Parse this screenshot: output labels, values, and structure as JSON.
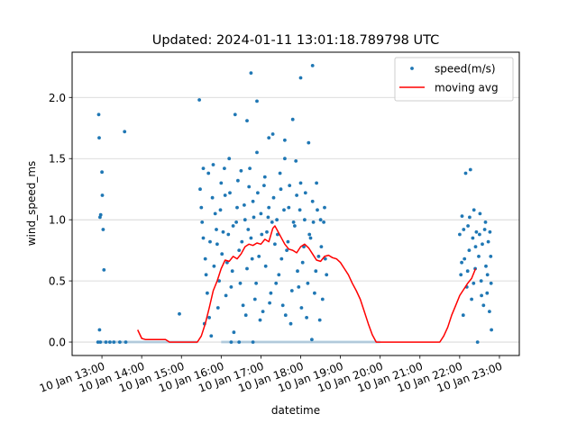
{
  "chart_data": {
    "type": "scatter",
    "title": "Updated: 2024-01-11 13:01:18.789798 UTC",
    "xlabel": "datetime",
    "ylabel": "wind_speed_ms",
    "x_unit": "hours (10 Jan 2024)",
    "xlim": [
      12.25,
      23.5
    ],
    "ylim": [
      -0.11,
      2.37
    ],
    "x_ticks": [
      13,
      14,
      15,
      16,
      17,
      18,
      19,
      20,
      21,
      22,
      23
    ],
    "x_tick_labels": [
      "10 Jan 13:00",
      "10 Jan 14:00",
      "10 Jan 15:00",
      "10 Jan 16:00",
      "10 Jan 17:00",
      "10 Jan 18:00",
      "10 Jan 19:00",
      "10 Jan 20:00",
      "10 Jan 21:00",
      "10 Jan 22:00",
      "10 Jan 23:00"
    ],
    "y_ticks": [
      0.0,
      0.5,
      1.0,
      1.5,
      2.0
    ],
    "y_tick_labels": [
      "0.0",
      "0.5",
      "1.0",
      "1.5",
      "2.0"
    ],
    "grid": "y",
    "legend": "top-right",
    "series": [
      {
        "name": "speed(m/s)",
        "kind": "scatter",
        "color": "#1f77b4",
        "points": [
          [
            12.92,
            1.86
          ],
          [
            12.93,
            1.67
          ],
          [
            12.95,
            1.02
          ],
          [
            12.97,
            1.04
          ],
          [
            13.0,
            1.39
          ],
          [
            13.01,
            1.2
          ],
          [
            13.03,
            0.92
          ],
          [
            13.05,
            0.59
          ],
          [
            12.94,
            0.1
          ],
          [
            12.9,
            0.0
          ],
          [
            12.96,
            0.0
          ],
          [
            13.1,
            0.0
          ],
          [
            13.2,
            0.0
          ],
          [
            13.3,
            0.0
          ],
          [
            13.45,
            0.0
          ],
          [
            13.6,
            0.0
          ],
          [
            13.57,
            1.72
          ],
          [
            14.95,
            0.23
          ],
          [
            15.45,
            1.98
          ],
          [
            15.47,
            1.25
          ],
          [
            15.5,
            1.1
          ],
          [
            15.52,
            0.98
          ],
          [
            15.55,
            0.85
          ],
          [
            15.6,
            0.68
          ],
          [
            15.62,
            0.55
          ],
          [
            15.65,
            0.4
          ],
          [
            15.7,
            0.2
          ],
          [
            15.75,
            0.05
          ],
          [
            15.8,
            1.45
          ],
          [
            15.85,
            1.05
          ],
          [
            15.9,
            0.8
          ],
          [
            15.95,
            0.5
          ],
          [
            16.0,
            1.3
          ],
          [
            16.05,
            0.9
          ],
          [
            16.1,
            1.2
          ],
          [
            16.15,
            0.65
          ],
          [
            16.2,
            1.5
          ],
          [
            16.25,
            0.45
          ],
          [
            16.3,
            0.95
          ],
          [
            16.35,
            1.86
          ],
          [
            16.4,
            1.1
          ],
          [
            16.45,
            0.75
          ],
          [
            16.5,
            1.4
          ],
          [
            16.55,
            0.3
          ],
          [
            16.6,
            1.0
          ],
          [
            16.65,
            0.6
          ],
          [
            16.7,
            1.27
          ],
          [
            16.75,
            0.85
          ],
          [
            16.8,
            1.15
          ],
          [
            16.85,
            0.35
          ],
          [
            16.9,
            1.55
          ],
          [
            16.95,
            0.7
          ],
          [
            17.0,
            1.05
          ],
          [
            17.05,
            0.25
          ],
          [
            17.1,
            1.35
          ],
          [
            17.15,
            0.9
          ],
          [
            17.2,
            1.1
          ],
          [
            17.25,
            0.4
          ],
          [
            17.3,
            1.7
          ],
          [
            17.35,
            0.8
          ],
          [
            17.4,
            1.0
          ],
          [
            17.45,
            0.55
          ],
          [
            17.5,
            1.25
          ],
          [
            17.55,
            0.3
          ],
          [
            17.6,
            1.5
          ],
          [
            17.65,
            0.75
          ],
          [
            17.7,
            1.1
          ],
          [
            17.75,
            0.15
          ],
          [
            17.8,
            1.82
          ],
          [
            17.85,
            0.95
          ],
          [
            17.9,
            1.2
          ],
          [
            17.95,
            0.45
          ],
          [
            18.0,
            1.3
          ],
          [
            18.05,
            0.65
          ],
          [
            18.1,
            1.0
          ],
          [
            18.15,
            0.2
          ],
          [
            18.2,
            1.63
          ],
          [
            18.25,
            0.85
          ],
          [
            18.3,
            1.15
          ],
          [
            18.35,
            0.4
          ],
          [
            18.4,
            1.3
          ],
          [
            18.45,
            0.7
          ],
          [
            18.5,
            1.0
          ],
          [
            18.55,
            0.35
          ],
          [
            18.6,
            1.1
          ],
          [
            18.65,
            0.55
          ],
          [
            16.65,
            1.81
          ],
          [
            16.75,
            2.2
          ],
          [
            16.9,
            1.97
          ],
          [
            17.2,
            1.67
          ],
          [
            17.6,
            1.65
          ],
          [
            18.0,
            2.16
          ],
          [
            18.3,
            2.26
          ],
          [
            16.25,
            0.0
          ],
          [
            16.8,
            0.0
          ],
          [
            16.45,
            0.0
          ],
          [
            15.55,
            1.42
          ],
          [
            15.58,
            0.15
          ],
          [
            15.68,
            1.38
          ],
          [
            15.72,
            0.82
          ],
          [
            15.78,
            1.18
          ],
          [
            15.82,
            0.62
          ],
          [
            15.88,
            0.92
          ],
          [
            15.92,
            0.28
          ],
          [
            15.98,
            1.08
          ],
          [
            16.02,
            0.72
          ],
          [
            16.08,
            1.42
          ],
          [
            16.12,
            0.38
          ],
          [
            16.18,
            0.88
          ],
          [
            16.22,
            1.22
          ],
          [
            16.28,
            0.58
          ],
          [
            16.32,
            0.08
          ],
          [
            16.38,
            0.98
          ],
          [
            16.42,
            1.32
          ],
          [
            16.48,
            0.48
          ],
          [
            16.52,
            0.82
          ],
          [
            16.58,
            1.12
          ],
          [
            16.62,
            0.22
          ],
          [
            16.68,
            0.92
          ],
          [
            16.72,
            1.42
          ],
          [
            16.78,
            0.68
          ],
          [
            16.82,
            1.02
          ],
          [
            16.88,
            0.48
          ],
          [
            16.92,
            1.22
          ],
          [
            16.98,
            0.18
          ],
          [
            17.02,
            0.88
          ],
          [
            17.08,
            1.28
          ],
          [
            17.12,
            0.62
          ],
          [
            17.18,
            1.02
          ],
          [
            17.22,
            0.32
          ],
          [
            17.28,
            0.98
          ],
          [
            17.32,
            1.18
          ],
          [
            17.38,
            0.48
          ],
          [
            17.42,
            0.88
          ],
          [
            17.48,
            1.38
          ],
          [
            17.52,
            0.68
          ],
          [
            17.58,
            1.08
          ],
          [
            17.62,
            0.22
          ],
          [
            17.68,
            0.82
          ],
          [
            17.72,
            1.28
          ],
          [
            17.78,
            0.42
          ],
          [
            17.82,
            0.98
          ],
          [
            17.88,
            1.48
          ],
          [
            17.92,
            0.58
          ],
          [
            17.98,
            1.08
          ],
          [
            18.02,
            0.28
          ],
          [
            18.08,
            0.78
          ],
          [
            18.12,
            1.22
          ],
          [
            18.18,
            0.48
          ],
          [
            18.22,
            0.88
          ],
          [
            18.28,
            0.02
          ],
          [
            18.32,
            0.98
          ],
          [
            18.38,
            0.58
          ],
          [
            18.42,
            1.08
          ],
          [
            18.48,
            0.18
          ],
          [
            18.52,
            0.78
          ],
          [
            18.58,
            0.98
          ],
          [
            18.62,
            0.68
          ],
          [
            22.0,
            0.88
          ],
          [
            22.03,
            0.55
          ],
          [
            22.06,
            1.03
          ],
          [
            22.09,
            0.22
          ],
          [
            22.12,
            0.68
          ],
          [
            22.15,
            1.38
          ],
          [
            22.18,
            0.45
          ],
          [
            22.21,
            0.95
          ],
          [
            22.24,
            0.75
          ],
          [
            22.27,
            1.41
          ],
          [
            22.3,
            0.35
          ],
          [
            22.33,
            0.85
          ],
          [
            22.36,
            1.08
          ],
          [
            22.39,
            0.6
          ],
          [
            22.42,
            0.9
          ],
          [
            22.45,
            0.0
          ],
          [
            22.48,
            0.7
          ],
          [
            22.51,
            1.05
          ],
          [
            22.54,
            0.5
          ],
          [
            22.57,
            0.8
          ],
          [
            22.6,
            0.3
          ],
          [
            22.63,
            0.92
          ],
          [
            22.66,
            0.62
          ],
          [
            22.69,
            0.4
          ],
          [
            22.72,
            0.82
          ],
          [
            22.75,
            0.25
          ],
          [
            22.78,
            0.7
          ],
          [
            22.8,
            0.1
          ],
          [
            22.05,
            0.65
          ],
          [
            22.1,
            0.92
          ],
          [
            22.2,
            0.58
          ],
          [
            22.25,
            1.02
          ],
          [
            22.35,
            0.48
          ],
          [
            22.4,
            0.78
          ],
          [
            22.5,
            0.88
          ],
          [
            22.55,
            0.38
          ],
          [
            22.65,
            0.98
          ],
          [
            22.7,
            0.55
          ],
          [
            22.76,
            0.9
          ],
          [
            22.79,
            0.48
          ]
        ]
      },
      {
        "name": "moving avg",
        "kind": "line",
        "color": "#ff0000",
        "points": [
          [
            13.9,
            0.1
          ],
          [
            14.0,
            0.03
          ],
          [
            14.1,
            0.02
          ],
          [
            14.6,
            0.02
          ],
          [
            14.7,
            0.0
          ],
          [
            15.4,
            0.0
          ],
          [
            15.5,
            0.05
          ],
          [
            15.6,
            0.15
          ],
          [
            15.7,
            0.28
          ],
          [
            15.8,
            0.42
          ],
          [
            15.9,
            0.5
          ],
          [
            16.0,
            0.6
          ],
          [
            16.1,
            0.67
          ],
          [
            16.2,
            0.66
          ],
          [
            16.3,
            0.7
          ],
          [
            16.4,
            0.68
          ],
          [
            16.5,
            0.72
          ],
          [
            16.6,
            0.78
          ],
          [
            16.7,
            0.8
          ],
          [
            16.8,
            0.79
          ],
          [
            16.9,
            0.81
          ],
          [
            17.0,
            0.8
          ],
          [
            17.1,
            0.84
          ],
          [
            17.2,
            0.82
          ],
          [
            17.3,
            0.93
          ],
          [
            17.35,
            0.95
          ],
          [
            17.4,
            0.92
          ],
          [
            17.5,
            0.86
          ],
          [
            17.6,
            0.8
          ],
          [
            17.7,
            0.76
          ],
          [
            17.8,
            0.75
          ],
          [
            17.9,
            0.73
          ],
          [
            18.0,
            0.78
          ],
          [
            18.1,
            0.8
          ],
          [
            18.2,
            0.77
          ],
          [
            18.3,
            0.72
          ],
          [
            18.4,
            0.67
          ],
          [
            18.5,
            0.66
          ],
          [
            18.6,
            0.7
          ],
          [
            18.7,
            0.71
          ],
          [
            18.8,
            0.69
          ],
          [
            18.9,
            0.68
          ],
          [
            19.0,
            0.65
          ],
          [
            19.1,
            0.6
          ],
          [
            19.2,
            0.55
          ],
          [
            19.3,
            0.48
          ],
          [
            19.4,
            0.42
          ],
          [
            19.5,
            0.35
          ],
          [
            19.6,
            0.25
          ],
          [
            19.7,
            0.15
          ],
          [
            19.8,
            0.06
          ],
          [
            19.9,
            0.0
          ],
          [
            20.7,
            0.0
          ],
          [
            21.5,
            0.0
          ],
          [
            21.6,
            0.05
          ],
          [
            21.7,
            0.12
          ],
          [
            21.8,
            0.22
          ],
          [
            21.9,
            0.3
          ],
          [
            22.0,
            0.38
          ],
          [
            22.1,
            0.43
          ],
          [
            22.2,
            0.48
          ],
          [
            22.3,
            0.52
          ],
          [
            22.4,
            0.6
          ]
        ]
      }
    ]
  }
}
